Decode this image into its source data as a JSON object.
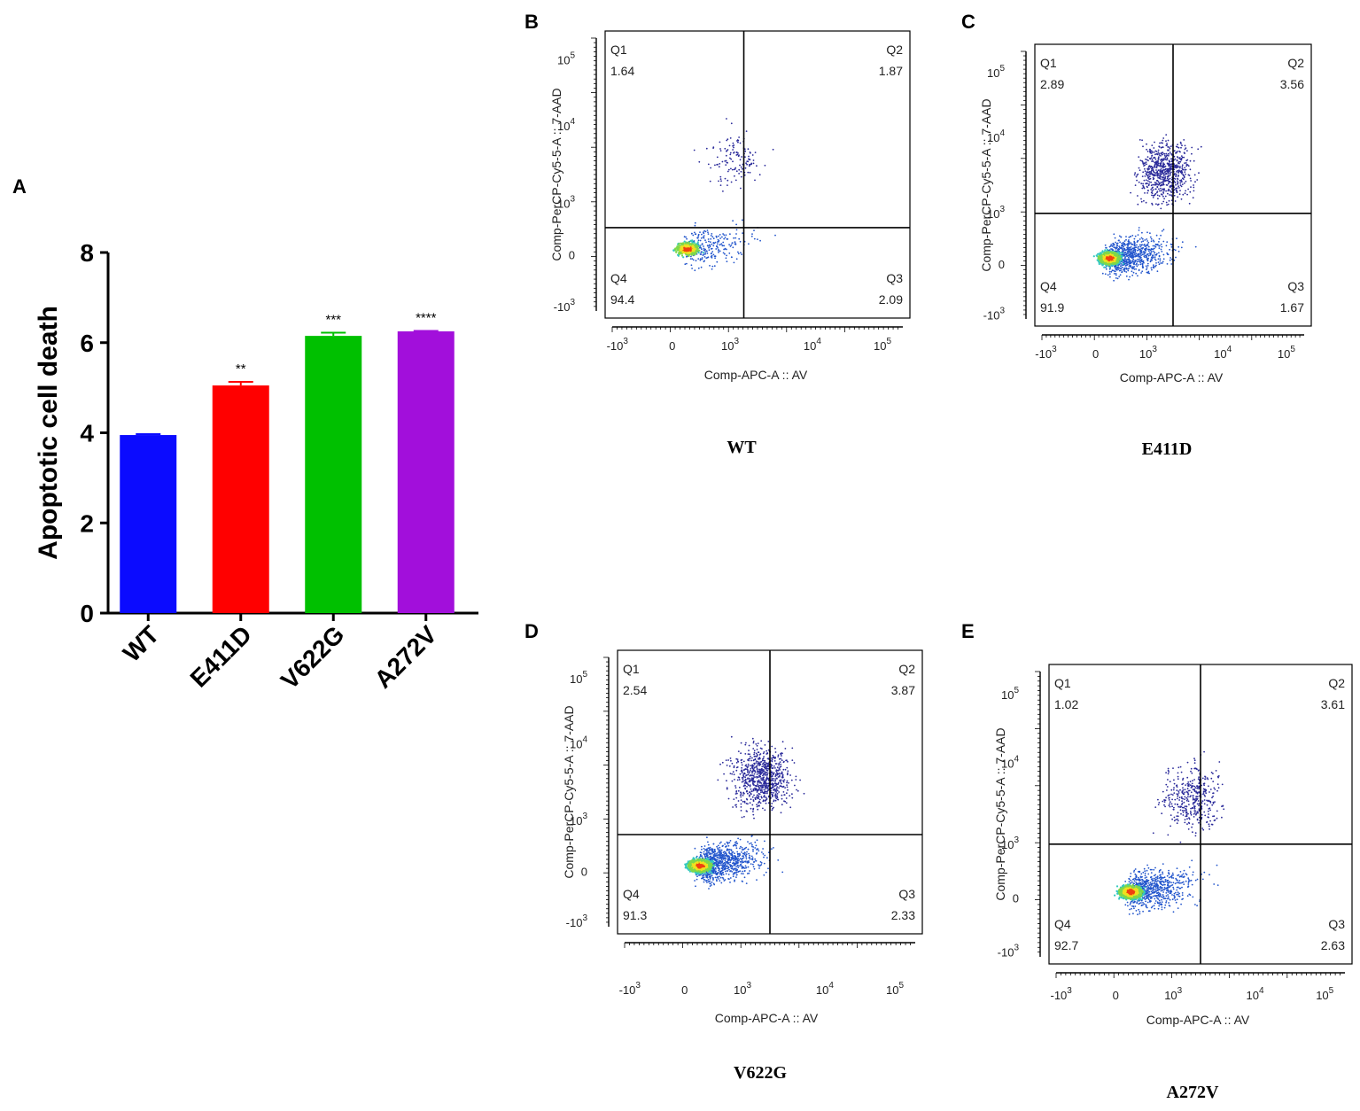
{
  "panel_letters": {
    "a": "A",
    "b": "B",
    "c": "C",
    "d": "D",
    "e": "E"
  },
  "colors": {
    "wt": "#0b0bff",
    "e411d": "#ff0000",
    "v622g": "#00c000",
    "a272v": "#a20fdb",
    "axis": "#000000",
    "dot": "#1a1a8c"
  },
  "chart_data": [
    {
      "type": "bar",
      "panel": "A",
      "title": "",
      "ylabel": "Apoptotic cell death",
      "xlabel": "",
      "ylim": [
        0,
        8
      ],
      "yticks": [
        "0",
        "2",
        "4",
        "6",
        "8"
      ],
      "categories": [
        "WT",
        "E411D",
        "V622G",
        "A272V"
      ],
      "values": [
        3.95,
        5.05,
        6.15,
        6.25
      ],
      "errors": [
        0.02,
        0.08,
        0.07,
        0.01
      ],
      "significance": [
        "",
        "**",
        "***",
        "****"
      ]
    },
    {
      "type": "scatter",
      "panel": "B",
      "sample": "WT",
      "xlabel": "Comp-APC-A :: AV",
      "ylabel": "Comp-PerCP-Cy5-5-A :: 7-AAD",
      "x_ticks": [
        "-10",
        "0",
        "10",
        "10",
        "10"
      ],
      "x_tick_exp": [
        "3",
        "",
        "3",
        "4",
        "5"
      ],
      "y_ticks": [
        "-10",
        "0",
        "10",
        "10",
        "10"
      ],
      "y_tick_exp": [
        "3",
        "",
        "3",
        "4",
        "5"
      ],
      "quadrants": {
        "Q1": "1.64",
        "Q2": "1.87",
        "Q3": "2.09",
        "Q4": "94.4"
      },
      "quadrant_names": [
        "Q1",
        "Q2",
        "Q3",
        "Q4"
      ]
    },
    {
      "type": "scatter",
      "panel": "C",
      "sample": "E411D",
      "xlabel": "Comp-APC-A :: AV",
      "ylabel": "Comp-PerCP-Cy5-5-A :: 7-AAD",
      "x_ticks": [
        "-10",
        "0",
        "10",
        "10",
        "10"
      ],
      "x_tick_exp": [
        "3",
        "",
        "3",
        "4",
        "5"
      ],
      "y_ticks": [
        "-10",
        "0",
        "10",
        "10",
        "10"
      ],
      "y_tick_exp": [
        "3",
        "",
        "3",
        "4",
        "5"
      ],
      "quadrants": {
        "Q1": "2.89",
        "Q2": "3.56",
        "Q3": "1.67",
        "Q4": "91.9"
      },
      "quadrant_names": [
        "Q1",
        "Q2",
        "Q3",
        "Q4"
      ]
    },
    {
      "type": "scatter",
      "panel": "D",
      "sample": "V622G",
      "xlabel": "Comp-APC-A :: AV",
      "ylabel": "Comp-PerCP-Cy5-5-A :: 7-AAD",
      "x_ticks": [
        "-10",
        "0",
        "10",
        "10",
        "10"
      ],
      "x_tick_exp": [
        "3",
        "",
        "3",
        "4",
        "5"
      ],
      "y_ticks": [
        "-10",
        "0",
        "10",
        "10",
        "10"
      ],
      "y_tick_exp": [
        "3",
        "",
        "3",
        "4",
        "5"
      ],
      "quadrants": {
        "Q1": "2.54",
        "Q2": "3.87",
        "Q3": "2.33",
        "Q4": "91.3"
      },
      "quadrant_names": [
        "Q1",
        "Q2",
        "Q3",
        "Q4"
      ]
    },
    {
      "type": "scatter",
      "panel": "E",
      "sample": "A272V",
      "xlabel": "Comp-APC-A :: AV",
      "ylabel": "Comp-PerCP-Cy5-5-A :: 7-AAD",
      "x_ticks": [
        "-10",
        "0",
        "10",
        "10",
        "10"
      ],
      "x_tick_exp": [
        "3",
        "",
        "3",
        "4",
        "5"
      ],
      "y_ticks": [
        "-10",
        "0",
        "10",
        "10",
        "10"
      ],
      "y_tick_exp": [
        "3",
        "",
        "3",
        "4",
        "5"
      ],
      "quadrants": {
        "Q1": "1.02",
        "Q2": "3.61",
        "Q3": "2.63",
        "Q4": "92.7"
      },
      "quadrant_names": [
        "Q1",
        "Q2",
        "Q3",
        "Q4"
      ]
    }
  ],
  "captions": {
    "b": "WT",
    "c": "E411D",
    "d": "V622G",
    "e": "A272V"
  }
}
